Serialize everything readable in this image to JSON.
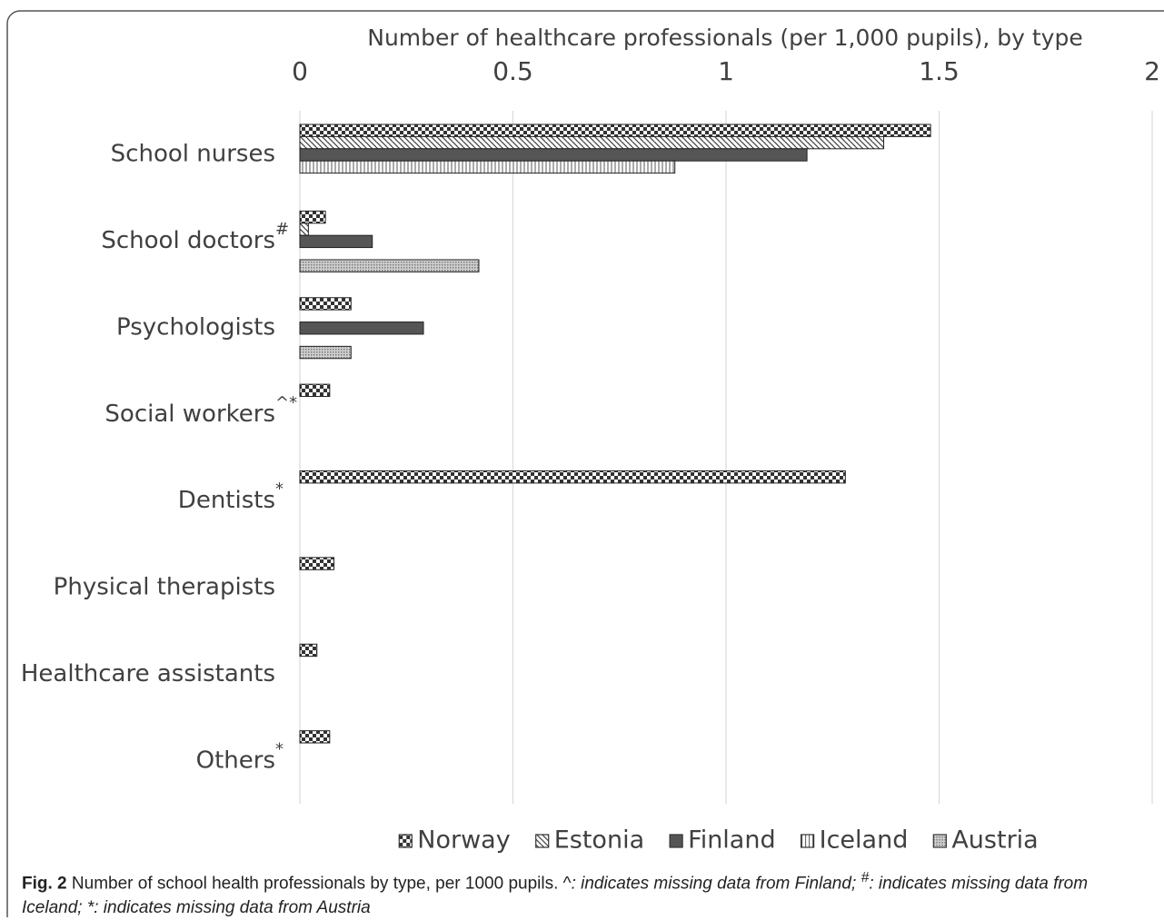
{
  "chart_data": {
    "type": "barh",
    "title": "Number of healthcare professionals (per 1,000 pupils), by type",
    "categories": [
      "School nurses",
      "School doctors",
      "Psychologists",
      "Social workers",
      "Dentists",
      "Physical therapists",
      "Healthcare assistants",
      "Others"
    ],
    "category_notes": [
      null,
      "#",
      null,
      "^*",
      "*",
      null,
      null,
      "*"
    ],
    "series": [
      {
        "name": "Norway",
        "color": "#333333",
        "pattern": "checker",
        "values": [
          1.48,
          0.06,
          0.12,
          0.07,
          1.28,
          0.08,
          0.04,
          0.07
        ]
      },
      {
        "name": "Estonia",
        "color": "#444444",
        "pattern": "diagonal",
        "values": [
          1.37,
          0.02,
          null,
          null,
          null,
          null,
          null,
          null
        ]
      },
      {
        "name": "Finland",
        "color": "#555555",
        "pattern": "solid",
        "values": [
          1.19,
          0.17,
          0.29,
          null,
          null,
          null,
          null,
          null
        ]
      },
      {
        "name": "Iceland",
        "color": "#555555",
        "pattern": "vertical",
        "values": [
          0.88,
          null,
          null,
          null,
          null,
          null,
          null,
          null
        ]
      },
      {
        "name": "Austria",
        "color": "#777777",
        "pattern": "crosshatch",
        "values": [
          null,
          0.42,
          0.12,
          null,
          null,
          null,
          null,
          null
        ]
      }
    ],
    "xlim": [
      0,
      2
    ],
    "xticks": [
      0,
      0.5,
      1,
      1.5,
      2
    ],
    "grid": true,
    "legend": "bottom"
  },
  "caption": {
    "label": "Fig. 2",
    "text": " Number of school health professionals by type, per 1000 pupils. ^",
    "note1": ": indicates missing data from Finland; ",
    "sup": "#",
    "note2": ": indicates missing data from Iceland; *: indicates missing data from Austria"
  }
}
